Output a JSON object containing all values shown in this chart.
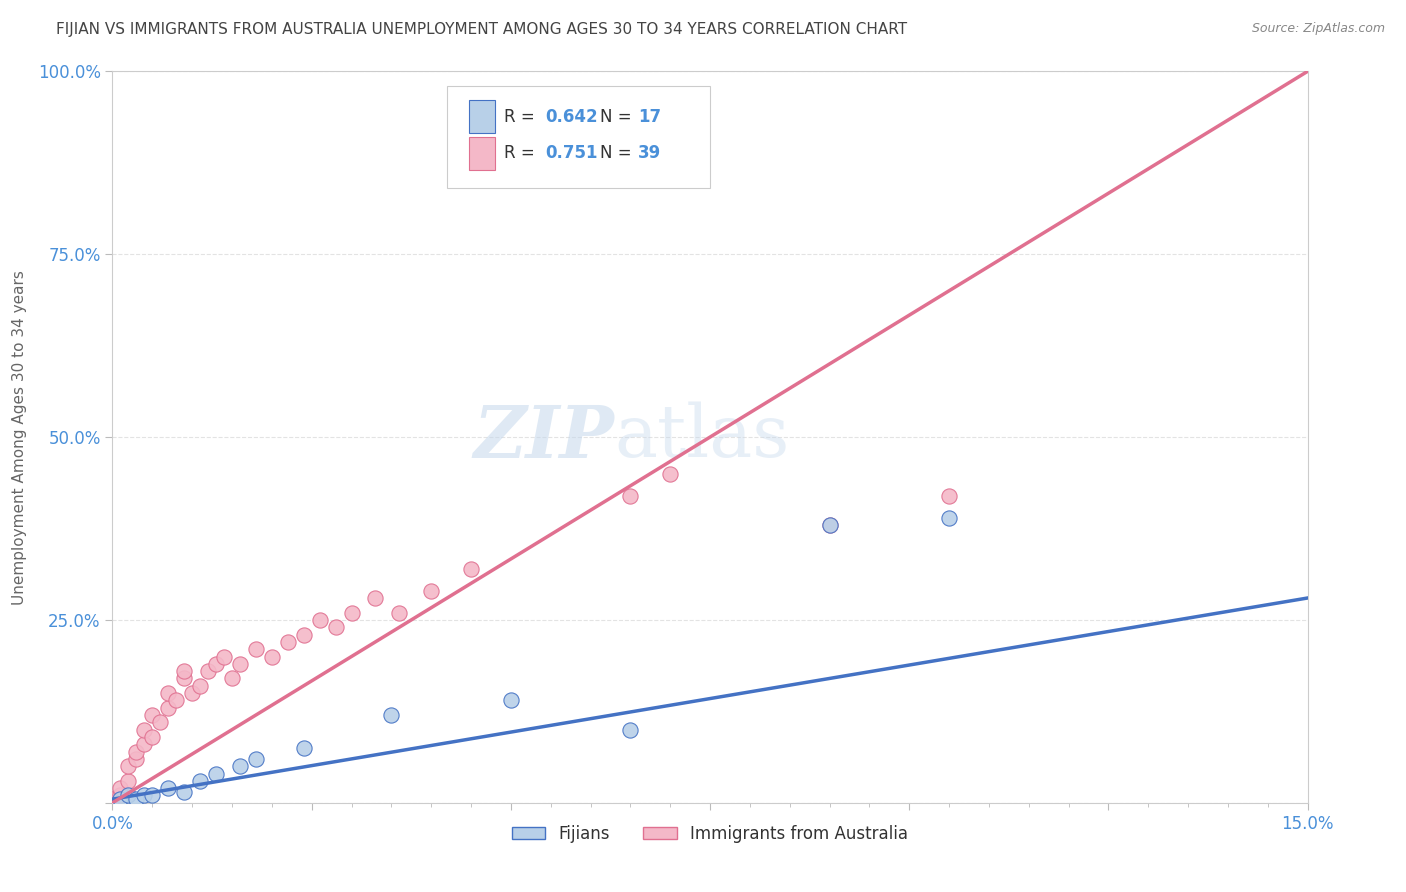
{
  "title": "FIJIAN VS IMMIGRANTS FROM AUSTRALIA UNEMPLOYMENT AMONG AGES 30 TO 34 YEARS CORRELATION CHART",
  "source": "Source: ZipAtlas.com",
  "ylabel": "Unemployment Among Ages 30 to 34 years",
  "xmin": 0.0,
  "xmax": 0.15,
  "ymin": 0.0,
  "ymax": 1.0,
  "fijians_color": "#b8d0e8",
  "fijians_line_color": "#4472c4",
  "australia_color": "#f4b8c8",
  "australia_line_color": "#e07090",
  "R_fijians": 0.642,
  "N_fijians": 17,
  "R_australia": 0.751,
  "N_australia": 39,
  "fijians_x": [
    0.001,
    0.002,
    0.003,
    0.004,
    0.005,
    0.007,
    0.009,
    0.011,
    0.013,
    0.016,
    0.018,
    0.024,
    0.035,
    0.05,
    0.065,
    0.09,
    0.105
  ],
  "fijians_y": [
    0.005,
    0.01,
    0.005,
    0.01,
    0.01,
    0.02,
    0.015,
    0.03,
    0.04,
    0.05,
    0.06,
    0.075,
    0.12,
    0.14,
    0.1,
    0.38,
    0.39
  ],
  "australia_x": [
    0.0,
    0.001,
    0.001,
    0.002,
    0.002,
    0.003,
    0.003,
    0.004,
    0.004,
    0.005,
    0.005,
    0.006,
    0.007,
    0.007,
    0.008,
    0.009,
    0.009,
    0.01,
    0.011,
    0.012,
    0.013,
    0.014,
    0.015,
    0.016,
    0.018,
    0.02,
    0.022,
    0.024,
    0.026,
    0.028,
    0.03,
    0.033,
    0.036,
    0.04,
    0.045,
    0.065,
    0.07,
    0.09,
    0.105
  ],
  "australia_y": [
    0.005,
    0.01,
    0.02,
    0.03,
    0.05,
    0.06,
    0.07,
    0.08,
    0.1,
    0.09,
    0.12,
    0.11,
    0.13,
    0.15,
    0.14,
    0.17,
    0.18,
    0.15,
    0.16,
    0.18,
    0.19,
    0.2,
    0.17,
    0.19,
    0.21,
    0.2,
    0.22,
    0.23,
    0.25,
    0.24,
    0.26,
    0.28,
    0.26,
    0.29,
    0.32,
    0.42,
    0.45,
    0.38,
    0.42
  ],
  "fijians_line_x": [
    0.0,
    0.15
  ],
  "fijians_line_y": [
    0.005,
    0.28
  ],
  "australia_line_x": [
    0.0,
    0.15
  ],
  "australia_line_y": [
    0.0,
    1.0
  ],
  "watermark_zip": "ZIP",
  "watermark_atlas": "atlas",
  "background_color": "#ffffff",
  "plot_bg_color": "#ffffff",
  "grid_color": "#e0e0e0",
  "title_color": "#444444",
  "axis_label_color": "#666666",
  "tick_label_color": "#4a90d9",
  "legend_text_color": "#333333",
  "legend_value_color": "#4a90d9"
}
